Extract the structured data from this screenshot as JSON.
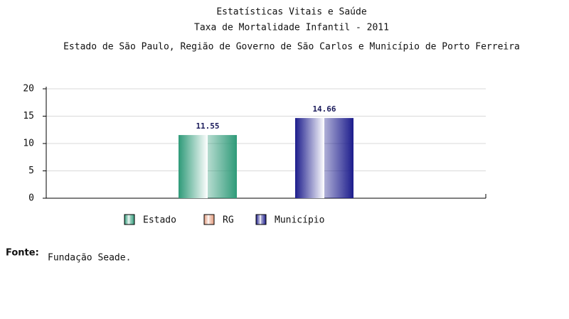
{
  "chart_data": {
    "type": "bar",
    "title": "Estatísticas Vitais e Saúde",
    "subtitle": "Taxa de Mortalidade Infantil - 2011",
    "region": "Estado de São Paulo, Região de Governo de São Carlos e Município de Porto Ferreira",
    "categories": [
      null
    ],
    "series": [
      {
        "name": "Estado",
        "color": "#2e9a78",
        "values": [
          11.55
        ]
      },
      {
        "name": "RG",
        "color": "#e39a7c",
        "values": [
          null
        ]
      },
      {
        "name": "Município",
        "color": "#1c1c8c",
        "values": [
          14.66
        ]
      }
    ],
    "ylim": [
      0,
      20
    ],
    "yticks": [
      0,
      5,
      10,
      15,
      20
    ],
    "grid": true
  },
  "source": {
    "label": "Fonte:",
    "text": "Fundação Seade."
  }
}
